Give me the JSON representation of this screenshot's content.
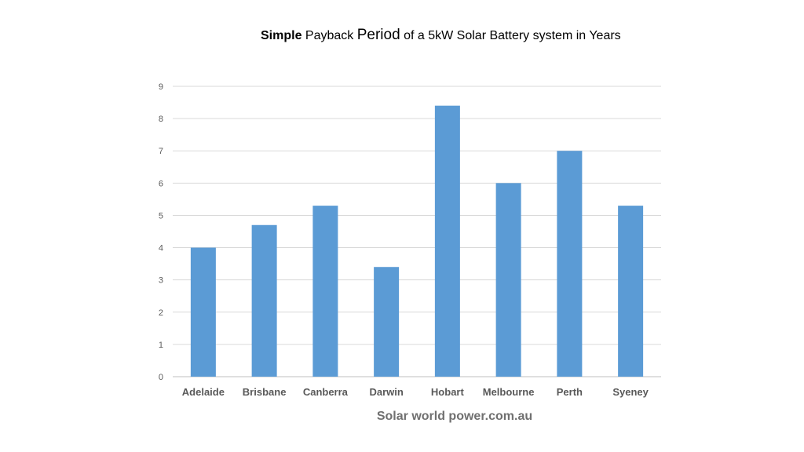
{
  "chart_data": {
    "type": "bar",
    "title_parts": [
      {
        "text": "Simple",
        "style": "bold"
      },
      {
        "text": " Payback ",
        "style": "normal"
      },
      {
        "text": "Period",
        "style": "large"
      },
      {
        "text": " of a 5kW Solar Battery system in Years",
        "style": "normal"
      }
    ],
    "categories": [
      "Adelaide",
      "Brisbane",
      "Canberra",
      "Darwin",
      "Hobart",
      "Melbourne",
      "Perth",
      "Syeney"
    ],
    "values": [
      4,
      4.7,
      5.3,
      3.4,
      8.4,
      6,
      7,
      5.3
    ],
    "ylim": [
      0,
      9
    ],
    "yticks": [
      "0",
      "1",
      "2",
      "3",
      "4",
      "5",
      "6",
      "7",
      "8",
      "9"
    ],
    "grid": true,
    "legend": "none",
    "bar_color": "#5b9bd5",
    "grid_color": "#d9d9d9",
    "label_color": "#595959"
  },
  "source": "Solar world power.com.au"
}
